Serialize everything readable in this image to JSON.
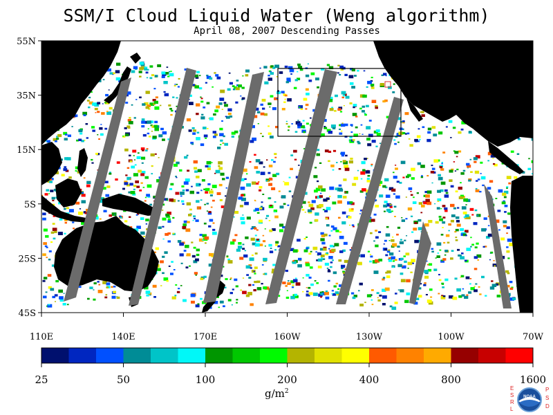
{
  "title": "SSM/I Cloud Liquid Water (Weng algorithm)",
  "subtitle": "April 08, 2007  Descending Passes",
  "map": {
    "lat_ticks": [
      "55N",
      "35N",
      "15N",
      "5S",
      "25S",
      "45S"
    ],
    "lon_ticks": [
      "110E",
      "140E",
      "170E",
      "160W",
      "130W",
      "100W",
      "70W"
    ],
    "colors": {
      "land": "#000000",
      "no_data": "#6b6b6b",
      "clear": "#ffffff",
      "box": "#000000",
      "marker": "#e03030"
    }
  },
  "colorbar": {
    "labels": [
      "25",
      "50",
      "100",
      "200",
      "400",
      "800",
      "1600"
    ],
    "units": "g/m",
    "units_exp": "2",
    "colors": [
      "#00106e",
      "#0026c0",
      "#0050ff",
      "#008c96",
      "#00c4c8",
      "#00f8f8",
      "#009600",
      "#00c800",
      "#00fa00",
      "#b4b400",
      "#e1e100",
      "#ffff00",
      "#ff5a00",
      "#ff8200",
      "#ffaa00",
      "#960000",
      "#c80000",
      "#ff0000"
    ]
  },
  "logo": {
    "left_letters": [
      "E",
      "S",
      "R",
      "L"
    ],
    "right_letters": [
      "P",
      "S",
      "D"
    ],
    "text": "NOAA"
  }
}
